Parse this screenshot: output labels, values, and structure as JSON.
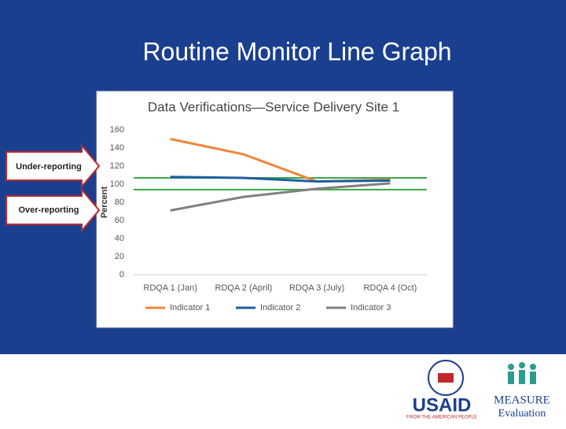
{
  "slide_title": "Routine Monitor Line Graph",
  "annotations": [
    "Under-reporting",
    "Over-reporting"
  ],
  "logos": {
    "usaid": "USAID",
    "usaid_tagline": "FROM THE AMERICAN PEOPLE",
    "measure": "MEASURE",
    "measure_sub": "Evaluation"
  },
  "chart_data": {
    "type": "line",
    "title": "Data Verifications—Service Delivery Site 1",
    "y_label": "Percent",
    "categories": [
      "RDQA 1 (Jan)",
      "RDQA 2 (April)",
      "RDQA 3 (July)",
      "RDQA 4 (Oct)"
    ],
    "series": [
      {
        "name": "Indicator 1",
        "color": "#f0873a",
        "values": [
          150,
          133,
          103,
          105
        ]
      },
      {
        "name": "Indicator 2",
        "color": "#1f5fa0",
        "values": [
          108,
          107,
          103,
          104
        ]
      },
      {
        "name": "Indicator 3",
        "color": "#808080",
        "values": [
          71,
          86,
          95,
          101
        ]
      }
    ],
    "reference_lines": {
      "color": "#3aa845",
      "values": [
        107,
        94
      ]
    },
    "ylim": [
      0,
      160
    ],
    "yticks": [
      0,
      20,
      40,
      60,
      80,
      100,
      120,
      140,
      160
    ],
    "grid": false,
    "legend": "bottom"
  }
}
